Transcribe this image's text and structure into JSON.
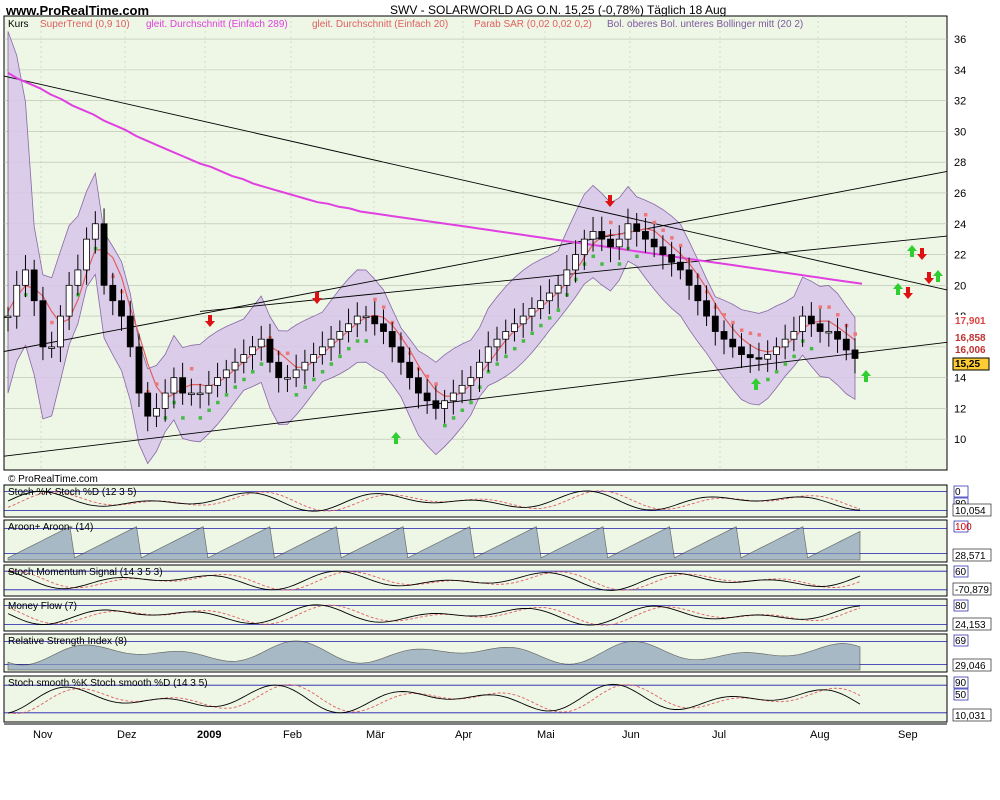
{
  "header": {
    "site": "www.ProRealTime.com",
    "title": "SWV - SOLARWORLD AG O.N.   15,25 (-0,78%)   Täglich  18 Aug"
  },
  "indicators": {
    "kurs": "Kurs",
    "supertrend": "SuperTrend (0,9 10)",
    "sma289": "gleit. Durchschnitt (Einfach 289)",
    "sma20": "gleit. Durchschnitt (Einfach 20)",
    "sar": "Parab SAR (0,02 0,02 0,2)",
    "bollinger": "Bol. oberes Bol. unteres Bollinger mitt (20 2)",
    "copyright": "© ProRealTime.com"
  },
  "price_labels": [
    "17,901",
    "16,858",
    "16,006",
    "15,25"
  ],
  "months": [
    "Nov",
    "Dez",
    "2009",
    "Feb",
    "Mär",
    "Apr",
    "Mai",
    "Jun",
    "Jul",
    "Aug",
    "Sep"
  ],
  "colors": {
    "bg": "#eef6e6",
    "grid": "#b5bfaa",
    "bollinger_fill": "#d9c8ea",
    "bollinger_line": "#7d5aa0",
    "sma289": "#e040e0",
    "sma20": "#e06060",
    "sar": "#ee7878",
    "supertrend": "#44bb44",
    "up_arrow": "#2fcf2f",
    "down_arrow": "#dd1111",
    "blue_line": "#1a1aaa",
    "area": "#8aa0b8"
  },
  "chart_data": [
    {
      "type": "line",
      "title": "SWV - SOLARWORLD AG O.N.",
      "series_name": "Kurs",
      "x_labels": [
        "Nov",
        "Dez",
        "2009",
        "Feb",
        "Mär",
        "Apr",
        "Mai",
        "Jun",
        "Jul",
        "Aug",
        "Sep"
      ],
      "y_ticks": [
        10,
        12,
        14,
        16,
        18,
        20,
        22,
        24,
        26,
        28,
        30,
        32,
        34,
        36
      ],
      "ylim": [
        8,
        37.5
      ],
      "close": [
        18,
        20,
        21,
        19,
        16,
        16,
        18,
        20,
        21,
        23,
        24,
        20,
        19,
        18,
        16,
        13,
        11.5,
        12,
        13,
        14,
        13,
        13,
        13,
        13.5,
        14,
        14.5,
        15,
        15.5,
        16,
        16.5,
        15,
        14,
        14,
        14.5,
        15,
        15.5,
        16,
        16.5,
        17,
        17.5,
        18,
        18,
        17.5,
        17,
        16,
        15,
        14,
        13,
        12.5,
        12,
        12.5,
        13,
        13.5,
        14,
        15,
        16,
        16.5,
        17,
        17.5,
        18,
        18.5,
        19,
        19.5,
        20,
        21,
        22,
        23,
        23.5,
        23,
        22.5,
        23,
        24,
        23.5,
        23,
        22.5,
        22,
        21.5,
        21,
        20,
        19,
        18,
        17,
        16.5,
        16,
        15.5,
        15.3,
        15.2,
        15.5,
        16,
        16.5,
        17,
        18,
        17.5,
        17,
        17,
        16.5,
        15.8,
        15.25
      ],
      "sma289": [
        33.8,
        33.4,
        33.1,
        32.8,
        32.4,
        32.1,
        31.7,
        31.4,
        31.1,
        30.7,
        30.4,
        30.1,
        29.7,
        29.4,
        29.1,
        28.8,
        28.5,
        28.2,
        27.9,
        27.7,
        27.4,
        27.1,
        26.9,
        26.6,
        26.4,
        26.2,
        26,
        25.8,
        25.6,
        25.4,
        25.3,
        25.1,
        25,
        24.8,
        24.7,
        24.6,
        24.5,
        24.4,
        24.3,
        24.2,
        24.1,
        24,
        23.9,
        23.8,
        23.7,
        23.6,
        23.5,
        23.4,
        23.3,
        23.2,
        23.1,
        23,
        22.9,
        22.8,
        22.7,
        22.6,
        22.5,
        22.4,
        22.3,
        22.2,
        22.1,
        22,
        21.9,
        21.8,
        21.7,
        21.6,
        21.5,
        21.4,
        21.3,
        21.2,
        21.1,
        21,
        20.9,
        20.8,
        20.7,
        20.6,
        20.5,
        20.4,
        20.3,
        20.2,
        20.1
      ],
      "price_labels": [
        "17,901",
        "16,858",
        "16,006",
        "15,25"
      ]
    },
    {
      "type": "line",
      "title": "Stoch %K Stoch %D (12 3 5)",
      "y_ticks": [
        0,
        80
      ],
      "ylim": [
        0,
        100
      ],
      "last": "10,054"
    },
    {
      "type": "area",
      "title": "Aroon+ Aroon- (14)",
      "y_ticks": [
        100
      ],
      "ylim": [
        0,
        100
      ],
      "last": "28,571"
    },
    {
      "type": "line",
      "title": "Stoch Momentum Signal (14 3 5 3)",
      "y_ticks": [
        60
      ],
      "ylim": [
        -100,
        100
      ],
      "last": "-70,879"
    },
    {
      "type": "line",
      "title": "Money Flow (7)",
      "y_ticks": [
        80
      ],
      "ylim": [
        0,
        100
      ],
      "last": "24,153"
    },
    {
      "type": "area",
      "title": "Relative Strength Index (8)",
      "y_ticks": [
        69
      ],
      "ylim": [
        0,
        100
      ],
      "last": "29,046"
    },
    {
      "type": "line",
      "title": "Stoch smooth %K Stoch smooth %D (14 3 5)",
      "y_ticks": [
        90,
        50
      ],
      "ylim": [
        0,
        100
      ],
      "last": "10,031"
    }
  ]
}
